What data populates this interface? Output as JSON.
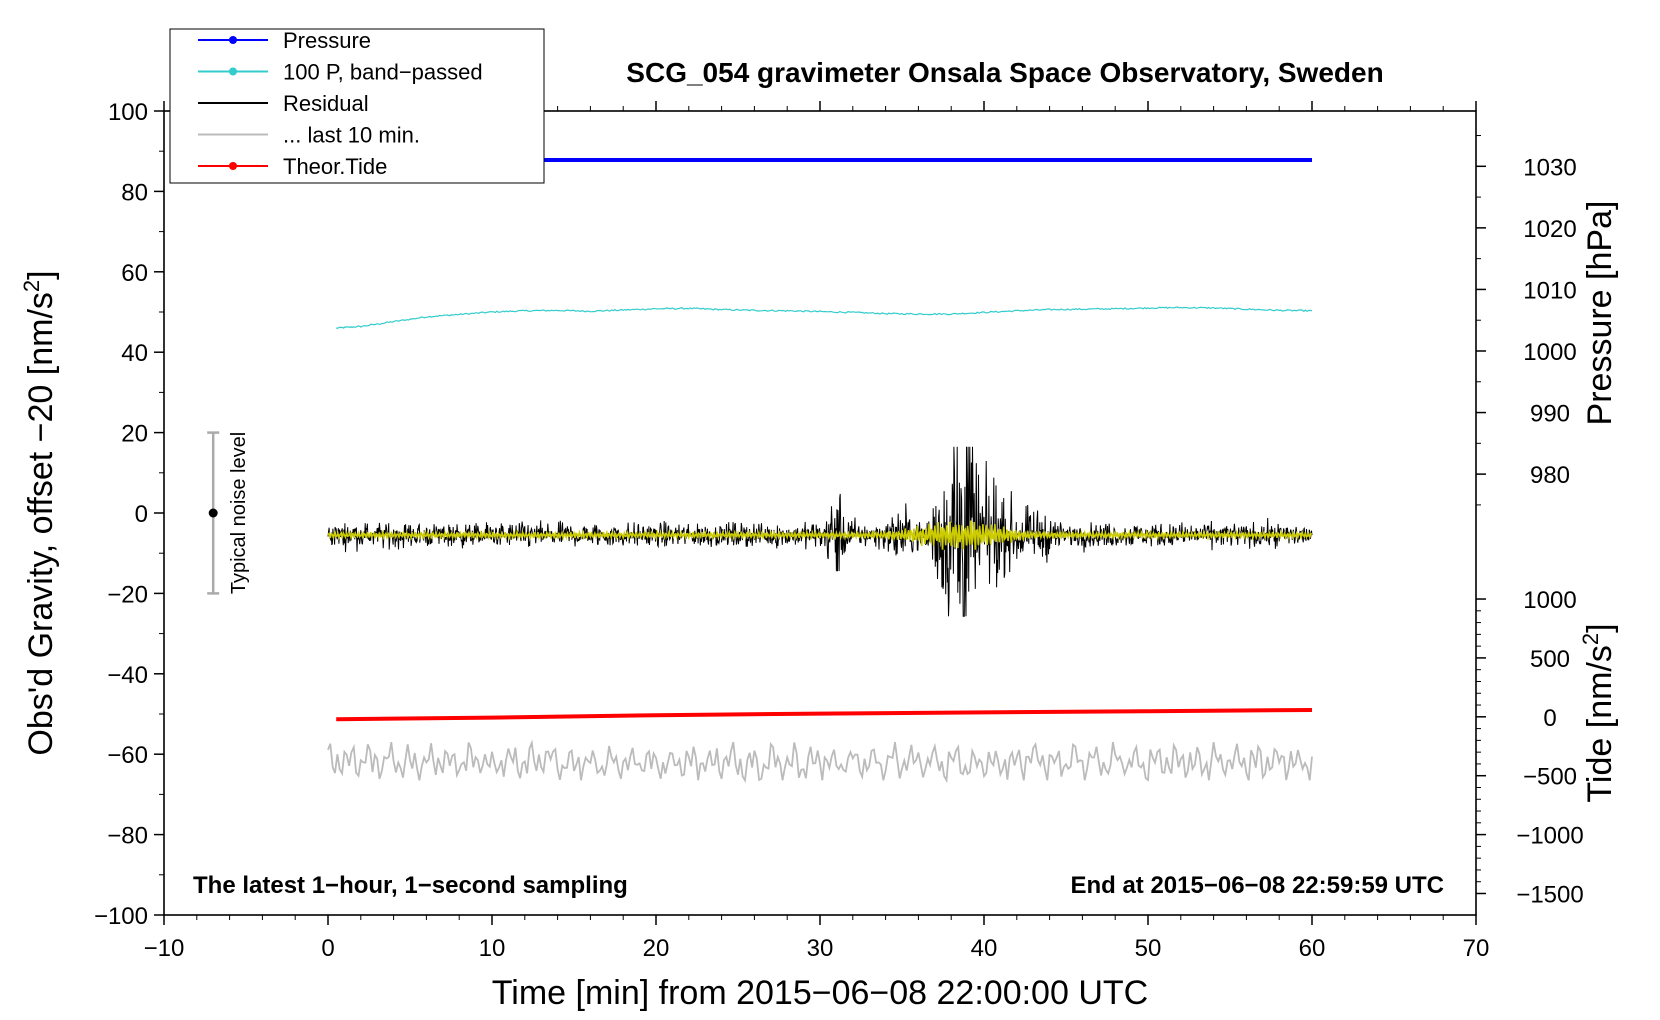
{
  "chart_data": {
    "type": "line",
    "title": "SCG_054 gravimeter Onsala Space Observatory, Sweden",
    "xlabel": "Time [min] from 2015−06−08 22:00:00 UTC",
    "ylabel_left": "Obs'd Gravity, offset −20 [nm/s2]",
    "ylabel_left_main": "Obs'd Gravity, offset −20 [nm/s",
    "ylabel_left_sup": "2",
    "ylabel_left_end": "]",
    "ylabel_pressure": "Pressure [hPa]",
    "ylabel_tide": "Tide [nm/s2]",
    "ylabel_tide_main": "Tide [nm/s",
    "ylabel_tide_sup": "2",
    "ylabel_tide_end": "]",
    "note_left": "The latest 1−hour, 1−second sampling",
    "note_right": "End at 2015−06−08 22:59:59 UTC",
    "noise_label": "Typical noise level",
    "xlim": [
      -10,
      70
    ],
    "ylim": [
      -100,
      100
    ],
    "x_ticks": [
      {
        "value": -10,
        "label": "−10"
      },
      {
        "value": 0,
        "label": "0"
      },
      {
        "value": 10,
        "label": "10"
      },
      {
        "value": 20,
        "label": "20"
      },
      {
        "value": 30,
        "label": "30"
      },
      {
        "value": 40,
        "label": "40"
      },
      {
        "value": 50,
        "label": "50"
      },
      {
        "value": 60,
        "label": "60"
      },
      {
        "value": 70,
        "label": "70"
      }
    ],
    "y_ticks_left": [
      {
        "value": 100,
        "label": "100"
      },
      {
        "value": 80,
        "label": "80"
      },
      {
        "value": 60,
        "label": "60"
      },
      {
        "value": 40,
        "label": "40"
      },
      {
        "value": 20,
        "label": "20"
      },
      {
        "value": 0,
        "label": "0"
      },
      {
        "value": -20,
        "label": "−20"
      },
      {
        "value": -40,
        "label": "−40"
      },
      {
        "value": -60,
        "label": "−60"
      },
      {
        "value": -80,
        "label": "−80"
      },
      {
        "value": -100,
        "label": "−100"
      }
    ],
    "pressure_axis": {
      "ticks": [
        {
          "value": 1030,
          "label": "1030"
        },
        {
          "value": 1020,
          "label": "1020"
        },
        {
          "value": 1010,
          "label": "1010"
        },
        {
          "value": 1000,
          "label": "1000"
        },
        {
          "value": 990,
          "label": "990"
        },
        {
          "value": 980,
          "label": "980"
        }
      ],
      "ref_hpa": 1000,
      "ref_left": 40.3,
      "hpa_per_unit": 0.653
    },
    "tide_axis": {
      "ticks": [
        {
          "value": 1000,
          "label": "1000"
        },
        {
          "value": 500,
          "label": "500"
        },
        {
          "value": 0,
          "label": "0"
        },
        {
          "value": -500,
          "label": "−500"
        },
        {
          "value": -1000,
          "label": "−1000"
        },
        {
          "value": -1500,
          "label": "−1500"
        }
      ],
      "ref_tide": 0,
      "ref_left": -50.7,
      "tide_per_unit": 0.0293
    },
    "noise_bar": {
      "x": -7,
      "center": 0,
      "low": -20,
      "high": 20
    },
    "legend": [
      {
        "label": "Pressure",
        "color": "#0000ff",
        "marker": "dot"
      },
      {
        "label": "100 P, band−passed",
        "color": "#33cccc",
        "marker": "dot"
      },
      {
        "label": "Residual",
        "color": "#000000",
        "marker": "none"
      },
      {
        "label": "... last 10 min.",
        "color": "#bbbbbb",
        "marker": "none"
      },
      {
        "label": "Theor.Tide",
        "color": "#ff0000",
        "marker": "dot"
      }
    ],
    "series": [
      {
        "name": "Pressure",
        "color": "#0000ff",
        "width": 4,
        "x": [
          0,
          10,
          20,
          30,
          40,
          50,
          60
        ],
        "y": [
          87.8,
          87.8,
          87.8,
          87.8,
          87.8,
          87.8,
          87.8
        ]
      },
      {
        "name": "100 P, band−passed",
        "color": "#33cccc",
        "width": 1.2,
        "x": [
          0.5,
          2,
          4,
          6,
          8,
          10,
          12,
          14,
          16,
          18,
          20,
          22,
          24,
          26,
          28,
          30,
          32,
          34,
          36,
          38,
          40,
          42,
          44,
          46,
          48,
          50,
          52,
          54,
          56,
          58,
          60
        ],
        "y": [
          46.0,
          46.4,
          47.6,
          48.8,
          49.4,
          50.0,
          50.3,
          50.4,
          50.2,
          50.5,
          50.8,
          50.9,
          50.6,
          50.4,
          50.3,
          50.1,
          49.9,
          49.6,
          49.5,
          49.5,
          49.9,
          50.3,
          50.6,
          50.7,
          50.8,
          51.0,
          51.1,
          51.0,
          50.7,
          50.4,
          50.3
        ]
      },
      {
        "name": "Theor.Tide",
        "color": "#ff0000",
        "width": 4,
        "x": [
          0.5,
          10,
          20,
          30,
          40,
          50,
          60
        ],
        "y": [
          -51.3,
          -50.9,
          -50.3,
          -49.9,
          -49.6,
          -49.3,
          -49.0
        ]
      }
    ],
    "residual": {
      "x_start": 0,
      "x_end": 60,
      "baseline": -5.5,
      "noise_amplitude": 2.6,
      "burst": [
        {
          "x": 31.0,
          "amp": 7
        },
        {
          "x": 35.0,
          "amp": 4
        },
        {
          "x": 37.5,
          "amp": 10
        },
        {
          "x": 38.5,
          "amp": 21
        },
        {
          "x": 39.0,
          "amp": 17
        },
        {
          "x": 40.5,
          "amp": 10
        },
        {
          "x": 42.0,
          "amp": 5
        },
        {
          "x": 43.5,
          "amp": 3
        }
      ],
      "range_min": -25.7,
      "range_max": 16.5
    },
    "residual_smoothed": {
      "color": "#cccc00",
      "baseline": -5.5,
      "amplitude": 0.8
    },
    "last_10_min": {
      "x_start": 0,
      "x_end": 60,
      "center": -62,
      "amplitude": 4.5,
      "min": -66.5,
      "max": -57.0
    }
  }
}
